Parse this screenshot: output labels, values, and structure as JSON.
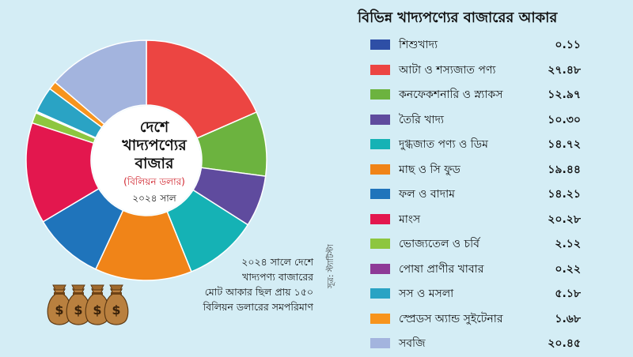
{
  "chart_data": {
    "type": "pie",
    "title": "বিভিন্ন খাদ্যপণ্যের বাজারের আকার",
    "center_title": "দেশে খাদ্যপণ্যের বাজার",
    "center_title_lines": [
      "দেশে",
      "খাদ্যপণ্যের",
      "বাজার"
    ],
    "unit": "(বিলিয়ন ডলার)",
    "year_label": "২০২৪ সাল",
    "note_lines": [
      "২০২৪ সালে দেশে",
      "খাদ্যপণ্য বাজারের",
      "মোট আকার ছিল প্রায় ১৫০",
      "বিলিয়ন ডলারের সমপরিমাণ"
    ],
    "source": "সূত্র: স্ট্যাটিস্টা",
    "legend_position": "right",
    "categories": [
      "শিশুখাদ্য",
      "আটা ও শস্যজাত পণ্য",
      "কনফেকশনারি ও স্ন্যাকস",
      "তৈরি খাদ্য",
      "দুগ্ধজাত পণ্য ও ডিম",
      "মাছ ও সি ফুড",
      "ফল ও বাদাম",
      "মাংস",
      "ভোজ্যতেল ও চর্বি",
      "পোষা প্রাণীর খাবার",
      "সস ও মসলা",
      "স্প্রেডস অ্যান্ড সুইটেনার",
      "সবজি"
    ],
    "values": [
      0.11,
      27.48,
      12.97,
      10.3,
      14.72,
      19.44,
      14.21,
      20.28,
      2.12,
      0.22,
      5.18,
      1.68,
      20.45
    ],
    "value_labels": [
      "০.১১",
      "২৭.৪৮",
      "১২.৯৭",
      "১০.৩০",
      "১৪.৭২",
      "১৯.৪৪",
      "১৪.২১",
      "২০.২৮",
      "২.১২",
      "০.২২",
      "৫.১৮",
      "১.৬৮",
      "২০.৪৫"
    ],
    "colors": [
      "#2e4fa6",
      "#ec4542",
      "#6cb33f",
      "#5f4b9e",
      "#15b2b5",
      "#f08418",
      "#1f74bb",
      "#e3174e",
      "#8dc63f",
      "#8e3a97",
      "#2aa3c4",
      "#f7941d",
      "#a3b4de"
    ]
  }
}
